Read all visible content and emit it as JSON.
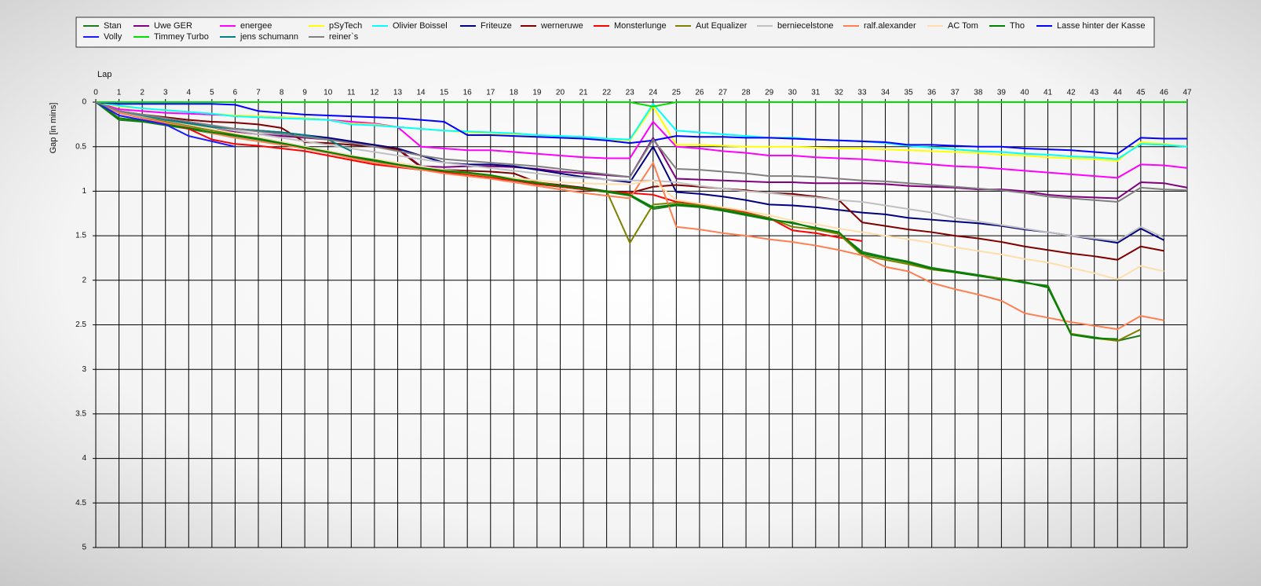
{
  "chart_data": {
    "type": "line",
    "x_label": "Lap",
    "y_label": "Gap [in mins]",
    "x": [
      0,
      1,
      2,
      3,
      4,
      5,
      6,
      7,
      8,
      9,
      10,
      11,
      12,
      13,
      14,
      15,
      16,
      17,
      18,
      19,
      20,
      21,
      22,
      23,
      24,
      25,
      26,
      27,
      28,
      29,
      30,
      31,
      32,
      33,
      34,
      35,
      36,
      37,
      38,
      39,
      40,
      41,
      42,
      43,
      44,
      45,
      46,
      47
    ],
    "xlim": [
      0,
      47
    ],
    "xticks": [
      0,
      1,
      2,
      3,
      4,
      5,
      6,
      7,
      8,
      9,
      10,
      11,
      12,
      13,
      14,
      15,
      16,
      17,
      18,
      19,
      20,
      21,
      22,
      23,
      24,
      25,
      26,
      27,
      28,
      29,
      30,
      31,
      32,
      33,
      34,
      35,
      36,
      37,
      38,
      39,
      40,
      41,
      42,
      43,
      44,
      45,
      46,
      47
    ],
    "ylim": [
      0,
      5
    ],
    "yticks": [
      0,
      0.5,
      1,
      1.5,
      2,
      2.5,
      3,
      3.5,
      4,
      4.5,
      5
    ],
    "y_inverted": true,
    "grid": true,
    "series": [
      {
        "name": "Stan",
        "color": "#1f7a1f",
        "values": [
          0,
          0.2,
          0.22,
          0.26,
          0.3,
          0.35,
          0.38,
          0.42,
          0.47,
          0.52,
          0.57,
          0.62,
          0.66,
          0.71,
          0.75,
          0.78,
          0.8,
          0.83,
          0.88,
          0.92,
          0.95,
          0.98,
          1.01,
          1.05,
          1.2,
          1.16,
          1.18,
          1.22,
          1.27,
          1.32,
          1.35,
          1.42,
          1.47,
          1.68,
          1.74,
          1.79,
          1.86,
          1.9,
          1.94,
          1.98,
          2.03,
          2.06,
          2.6,
          2.64,
          2.68,
          2.62,
          null,
          null
        ]
      },
      {
        "name": "Uwe GER",
        "color": "#800080",
        "values": [
          0,
          0.1,
          0.15,
          0.2,
          0.25,
          0.3,
          0.33,
          0.36,
          0.38,
          0.4,
          0.42,
          0.45,
          0.48,
          0.52,
          0.72,
          0.73,
          0.72,
          0.72,
          0.73,
          0.75,
          0.78,
          0.8,
          0.82,
          0.84,
          0.4,
          0.86,
          0.87,
          0.88,
          0.89,
          0.9,
          0.9,
          0.91,
          0.91,
          0.91,
          0.92,
          0.94,
          0.95,
          0.96,
          0.98,
          0.98,
          1.0,
          1.04,
          1.06,
          1.07,
          1.08,
          0.9,
          0.91,
          0.96
        ]
      },
      {
        "name": "energee",
        "color": "#ff00ff",
        "values": [
          0,
          0.08,
          0.1,
          0.12,
          0.13,
          0.14,
          0.15,
          0.16,
          0.17,
          0.18,
          0.2,
          0.22,
          0.24,
          0.28,
          0.5,
          0.52,
          0.54,
          0.54,
          0.56,
          0.58,
          0.6,
          0.62,
          0.63,
          0.63,
          0.22,
          0.5,
          0.52,
          0.55,
          0.57,
          0.6,
          0.6,
          0.62,
          0.63,
          0.64,
          0.66,
          0.68,
          0.7,
          0.72,
          0.73,
          0.75,
          0.77,
          0.79,
          0.81,
          0.83,
          0.85,
          0.7,
          0.71,
          0.74
        ]
      },
      {
        "name": "pSyTech",
        "color": "#ffff00",
        "values": [
          0,
          0.05,
          0.07,
          0.09,
          0.11,
          0.13,
          0.15,
          0.16,
          0.17,
          0.18,
          0.2,
          0.24,
          0.25,
          0.28,
          0.3,
          0.32,
          0.34,
          0.35,
          0.36,
          0.38,
          0.39,
          0.4,
          0.42,
          0.43,
          0.05,
          0.48,
          0.48,
          0.49,
          0.5,
          0.5,
          0.5,
          0.51,
          0.52,
          0.52,
          0.53,
          0.54,
          0.55,
          0.56,
          0.57,
          0.59,
          0.6,
          0.62,
          0.63,
          0.64,
          0.66,
          0.45,
          0.47,
          0.5
        ]
      },
      {
        "name": "Olivier Boissel",
        "color": "#00ffff",
        "values": [
          0,
          0.04,
          0.07,
          0.09,
          0.11,
          0.13,
          0.16,
          0.17,
          0.18,
          0.19,
          0.2,
          0.25,
          0.26,
          0.28,
          0.3,
          0.32,
          0.33,
          0.34,
          0.35,
          0.37,
          0.38,
          0.39,
          0.41,
          0.42,
          0.02,
          0.32,
          0.34,
          0.36,
          0.38,
          0.4,
          0.4,
          0.42,
          0.43,
          0.44,
          0.46,
          0.49,
          0.51,
          0.53,
          0.55,
          0.56,
          0.58,
          0.59,
          0.61,
          0.62,
          0.64,
          0.47,
          0.48,
          0.5
        ]
      },
      {
        "name": "Friteuze",
        "color": "#000080",
        "values": [
          0,
          0.12,
          0.16,
          0.2,
          0.23,
          0.28,
          0.3,
          0.32,
          0.34,
          0.37,
          0.4,
          0.44,
          0.48,
          0.52,
          0.6,
          0.68,
          0.7,
          0.7,
          0.72,
          0.76,
          0.8,
          0.84,
          0.87,
          0.9,
          0.5,
          1.01,
          1.03,
          1.06,
          1.1,
          1.15,
          1.16,
          1.18,
          1.21,
          1.24,
          1.26,
          1.3,
          1.32,
          1.34,
          1.36,
          1.39,
          1.43,
          1.46,
          1.5,
          1.54,
          1.58,
          1.42,
          1.55,
          null
        ]
      },
      {
        "name": "werneruwe",
        "color": "#800000",
        "values": [
          0,
          0.1,
          0.14,
          0.17,
          0.2,
          0.22,
          0.23,
          0.25,
          0.29,
          0.45,
          0.46,
          0.48,
          0.5,
          0.53,
          0.73,
          0.76,
          0.77,
          0.78,
          0.8,
          0.9,
          0.93,
          0.96,
          1.0,
          1.02,
          0.95,
          0.93,
          0.95,
          0.97,
          0.99,
          1.02,
          1.03,
          1.06,
          1.1,
          1.35,
          1.39,
          1.43,
          1.46,
          1.5,
          1.53,
          1.57,
          1.62,
          1.66,
          1.7,
          1.73,
          1.77,
          1.62,
          1.67,
          null
        ]
      },
      {
        "name": "Monsterlunge",
        "color": "#ff0000",
        "values": [
          0,
          0.15,
          0.2,
          0.24,
          0.3,
          0.42,
          0.47,
          0.49,
          0.52,
          0.55,
          0.6,
          0.65,
          0.7,
          0.73,
          0.76,
          0.79,
          0.82,
          0.85,
          0.88,
          0.92,
          0.95,
          0.98,
          1.0,
          1.02,
          1.04,
          1.12,
          1.15,
          1.19,
          1.24,
          1.3,
          1.44,
          1.47,
          1.52,
          1.56,
          null,
          null,
          null,
          null,
          null,
          null,
          null,
          null,
          null,
          null,
          null,
          null,
          null,
          null
        ]
      },
      {
        "name": "Aut Equalizer",
        "color": "#808000",
        "values": [
          0,
          0.12,
          0.17,
          0.22,
          0.27,
          0.32,
          0.36,
          0.4,
          0.45,
          0.5,
          0.55,
          0.6,
          0.65,
          0.7,
          0.74,
          0.77,
          0.8,
          0.83,
          0.87,
          0.9,
          0.94,
          0.97,
          1.0,
          1.58,
          1.15,
          1.13,
          1.16,
          1.2,
          1.25,
          1.3,
          1.4,
          1.43,
          1.48,
          1.72,
          1.77,
          1.82,
          1.88,
          1.91,
          1.95,
          1.98,
          2.02,
          2.08,
          2.6,
          2.65,
          2.68,
          2.55,
          null,
          null
        ]
      },
      {
        "name": "berniecelstone",
        "color": "#c0c0c0",
        "values": [
          0,
          0.12,
          0.16,
          0.2,
          0.24,
          0.28,
          0.32,
          0.36,
          0.4,
          0.44,
          0.48,
          0.52,
          0.56,
          0.6,
          0.64,
          0.68,
          0.71,
          0.74,
          0.77,
          0.8,
          0.83,
          0.85,
          0.87,
          0.88,
          0.88,
          0.9,
          0.94,
          0.97,
          1.0,
          1.02,
          1.05,
          1.07,
          1.1,
          1.12,
          1.16,
          1.2,
          1.24,
          1.3,
          1.34,
          1.38,
          1.42,
          1.46,
          1.5,
          1.53,
          1.56,
          1.4,
          1.52,
          null
        ]
      },
      {
        "name": "ralf.alexander",
        "color": "#ff7f50",
        "values": [
          0,
          0.12,
          0.18,
          0.23,
          0.28,
          0.35,
          0.4,
          0.44,
          0.48,
          0.52,
          0.57,
          0.63,
          0.68,
          0.72,
          0.76,
          0.8,
          0.83,
          0.86,
          0.9,
          0.94,
          0.98,
          1.02,
          1.05,
          1.08,
          0.68,
          1.4,
          1.43,
          1.47,
          1.5,
          1.54,
          1.57,
          1.61,
          1.66,
          1.72,
          1.85,
          1.9,
          2.03,
          2.1,
          2.16,
          2.23,
          2.37,
          2.42,
          2.47,
          2.51,
          2.55,
          2.4,
          2.45,
          null
        ]
      },
      {
        "name": "AC Tom",
        "color": "#ffdead",
        "values": [
          0,
          0.1,
          0.15,
          0.2,
          0.25,
          0.3,
          0.35,
          0.4,
          0.45,
          0.5,
          0.55,
          0.6,
          0.64,
          0.68,
          0.72,
          0.76,
          0.79,
          0.82,
          0.85,
          0.88,
          0.9,
          0.91,
          0.92,
          0.92,
          0.88,
          1.1,
          1.14,
          1.18,
          1.22,
          1.27,
          1.33,
          1.37,
          1.42,
          1.46,
          1.5,
          1.54,
          1.58,
          1.63,
          1.67,
          1.71,
          1.76,
          1.8,
          1.86,
          1.92,
          1.99,
          1.84,
          1.9,
          null
        ]
      },
      {
        "name": "Tho",
        "color": "#008000",
        "values": [
          0,
          0.18,
          0.21,
          0.25,
          0.29,
          0.34,
          0.37,
          0.41,
          0.46,
          0.51,
          0.56,
          0.61,
          0.65,
          0.7,
          0.74,
          0.77,
          0.79,
          0.82,
          0.87,
          0.91,
          0.94,
          0.97,
          1.0,
          1.04,
          1.18,
          1.15,
          1.17,
          1.21,
          1.26,
          1.31,
          1.36,
          1.41,
          1.46,
          1.7,
          1.75,
          1.8,
          1.87,
          1.91,
          1.95,
          1.99,
          2.02,
          2.08,
          2.61,
          2.65,
          2.66,
          null,
          null,
          null
        ]
      },
      {
        "name": "Lasse hinter der Kasse",
        "color": "#0000ff",
        "values": [
          0,
          0.02,
          0.02,
          0.02,
          0.02,
          0.02,
          0.03,
          0.1,
          0.12,
          0.14,
          0.15,
          0.16,
          0.17,
          0.18,
          0.2,
          0.22,
          0.37,
          0.37,
          0.38,
          0.39,
          0.4,
          0.41,
          0.43,
          0.46,
          0.43,
          0.38,
          0.39,
          0.39,
          0.4,
          0.4,
          0.41,
          0.42,
          0.43,
          0.44,
          0.45,
          0.48,
          0.48,
          0.49,
          0.5,
          0.5,
          0.52,
          0.53,
          0.54,
          0.56,
          0.58,
          0.4,
          0.41,
          0.41
        ]
      },
      {
        "name": "Volly",
        "color": "#1a1aff",
        "values": [
          0,
          0.15,
          0.2,
          0.25,
          0.38,
          0.44,
          0.5,
          null,
          null,
          null,
          null,
          null,
          null,
          null,
          null,
          null,
          null,
          null,
          null,
          null,
          null,
          null,
          null,
          null,
          null,
          null,
          null,
          null,
          null,
          null,
          null,
          null,
          null,
          null,
          null,
          null,
          null,
          null,
          null,
          null,
          null,
          null,
          null,
          null,
          null,
          null,
          null,
          null
        ]
      },
      {
        "name": "Timmey Turbo",
        "color": "#00e000",
        "values": [
          0,
          0,
          0,
          0,
          0,
          0,
          0,
          0,
          0,
          0,
          0,
          0,
          0,
          0,
          0,
          0,
          0,
          0,
          0,
          0,
          0,
          0,
          0,
          0,
          0.05,
          0,
          0,
          0,
          0,
          0,
          0,
          0,
          0,
          0,
          0,
          0,
          0,
          0,
          0,
          0,
          0,
          0,
          0,
          0,
          0,
          0,
          0,
          0
        ]
      },
      {
        "name": "jens  schumann",
        "color": "#008080",
        "values": [
          0,
          0.1,
          0.15,
          0.2,
          0.24,
          0.28,
          0.3,
          0.32,
          0.34,
          0.37,
          0.42,
          0.55,
          null,
          null,
          null,
          null,
          null,
          null,
          null,
          null,
          null,
          null,
          null,
          null,
          null,
          null,
          null,
          null,
          null,
          null,
          null,
          null,
          null,
          null,
          null,
          null,
          null,
          null,
          null,
          null,
          null,
          null,
          null,
          null,
          null,
          null,
          null,
          null
        ]
      },
      {
        "name": "reiner`s",
        "color": "#808080",
        "values": [
          0,
          0.1,
          0.14,
          0.18,
          0.22,
          0.26,
          0.3,
          0.33,
          0.36,
          0.39,
          0.42,
          0.46,
          0.5,
          0.55,
          0.6,
          0.64,
          0.66,
          0.68,
          0.7,
          0.72,
          0.75,
          0.78,
          0.81,
          0.84,
          0.42,
          0.75,
          0.76,
          0.78,
          0.8,
          0.83,
          0.83,
          0.84,
          0.86,
          0.88,
          0.89,
          0.91,
          0.93,
          0.95,
          0.97,
          0.99,
          1.02,
          1.06,
          1.08,
          1.1,
          1.12,
          0.96,
          0.98,
          0.99
        ]
      }
    ]
  }
}
